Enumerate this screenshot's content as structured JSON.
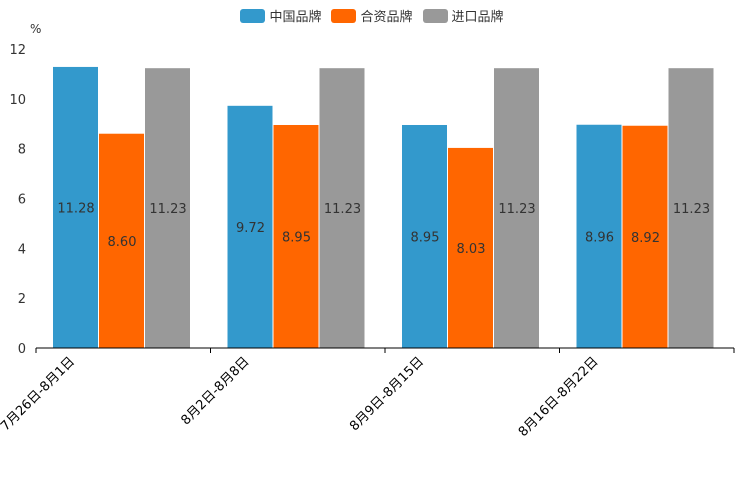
{
  "chart_data": {
    "type": "bar",
    "unit": "%",
    "categories": [
      "7月26日-8月1日",
      "8月2日-8月8日",
      "8月9日-8月15日",
      "8月16日-8月22日"
    ],
    "series": [
      {
        "name": "中国品牌",
        "color": "#3399cc",
        "values": [
          11.28,
          9.72,
          8.95,
          8.96
        ],
        "labels": [
          "11.28",
          "9.72",
          "8.95",
          "8.96"
        ]
      },
      {
        "name": "合资品牌",
        "color": "#ff6600",
        "values": [
          8.6,
          8.95,
          8.03,
          8.92
        ],
        "labels": [
          "8.60",
          "8.95",
          "8.03",
          "8.92"
        ]
      },
      {
        "name": "进口品牌",
        "color": "#999999",
        "values": [
          11.23,
          11.23,
          11.23,
          11.23
        ],
        "labels": [
          "11.23",
          "11.23",
          "11.23",
          "11.23"
        ]
      }
    ],
    "ylim": [
      0,
      12
    ],
    "yticks": [
      0,
      2,
      4,
      6,
      8,
      10,
      12
    ],
    "legend_position": "top-center"
  }
}
